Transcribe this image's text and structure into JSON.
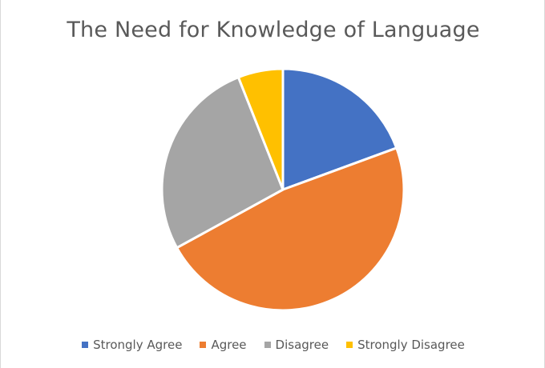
{
  "chart_data": {
    "type": "pie",
    "title": "The Need for Knowledge of Language",
    "categories": [
      "Strongly Agree",
      "Agree",
      "Disagree",
      "Strongly Disagree"
    ],
    "values": [
      19.4,
      47.6,
      27,
      6
    ],
    "unit": "percent",
    "colors": [
      "#4472c4",
      "#ed7d31",
      "#a5a5a5",
      "#ffc000"
    ],
    "start": "12 o'clock",
    "direction": "clockwise",
    "legend": "bottom"
  }
}
